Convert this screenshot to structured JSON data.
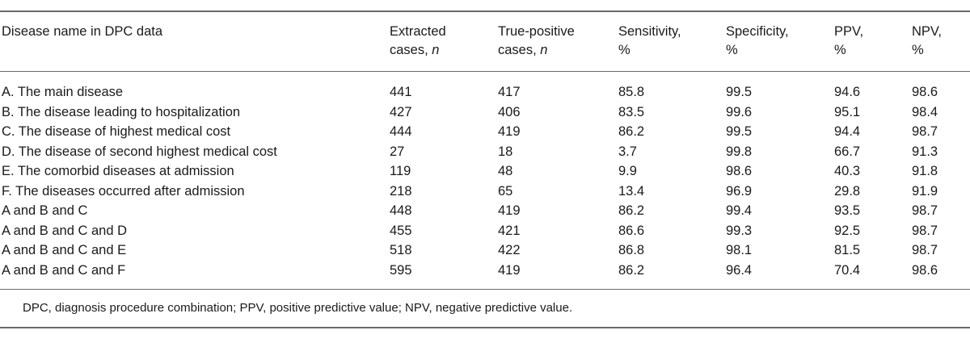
{
  "table": {
    "headers": [
      {
        "line1": "Disease name in DPC data",
        "line2_main": "",
        "line2_italic": ""
      },
      {
        "line1": "Extracted",
        "line2_main": "cases, ",
        "line2_italic": "n"
      },
      {
        "line1": "True-positive",
        "line2_main": "cases, ",
        "line2_italic": "n"
      },
      {
        "line1": "Sensitivity,",
        "line2_main": "%",
        "line2_italic": ""
      },
      {
        "line1": "Specificity,",
        "line2_main": "%",
        "line2_italic": ""
      },
      {
        "line1": "PPV,",
        "line2_main": "%",
        "line2_italic": ""
      },
      {
        "line1": "NPV,",
        "line2_main": "%",
        "line2_italic": ""
      }
    ],
    "rows": [
      [
        "A. The main disease",
        "441",
        "417",
        "85.8",
        "99.5",
        "94.6",
        "98.6"
      ],
      [
        "B. The disease leading to hospitalization",
        "427",
        "406",
        "83.5",
        "99.6",
        "95.1",
        "98.4"
      ],
      [
        "C. The disease of highest medical cost",
        "444",
        "419",
        "86.2",
        "99.5",
        "94.4",
        "98.7"
      ],
      [
        "D. The disease of second highest medical cost",
        "27",
        "18",
        "3.7",
        "99.8",
        "66.7",
        "91.3"
      ],
      [
        "E. The comorbid diseases at admission",
        "119",
        "48",
        "9.9",
        "98.6",
        "40.3",
        "91.8"
      ],
      [
        "F. The diseases occurred after admission",
        "218",
        "65",
        "13.4",
        "96.9",
        "29.8",
        "91.9"
      ],
      [
        "A and B and C",
        "448",
        "419",
        "86.2",
        "99.4",
        "93.5",
        "98.7"
      ],
      [
        "A and B and C and D",
        "455",
        "421",
        "86.6",
        "99.3",
        "92.5",
        "98.7"
      ],
      [
        "A and B and C and E",
        "518",
        "422",
        "86.8",
        "98.1",
        "81.5",
        "98.7"
      ],
      [
        "A and B and C and F",
        "595",
        "419",
        "86.2",
        "96.4",
        "70.4",
        "98.6"
      ]
    ],
    "footnote": "DPC, diagnosis procedure combination; PPV, positive predictive value; NPV, negative predictive value."
  }
}
